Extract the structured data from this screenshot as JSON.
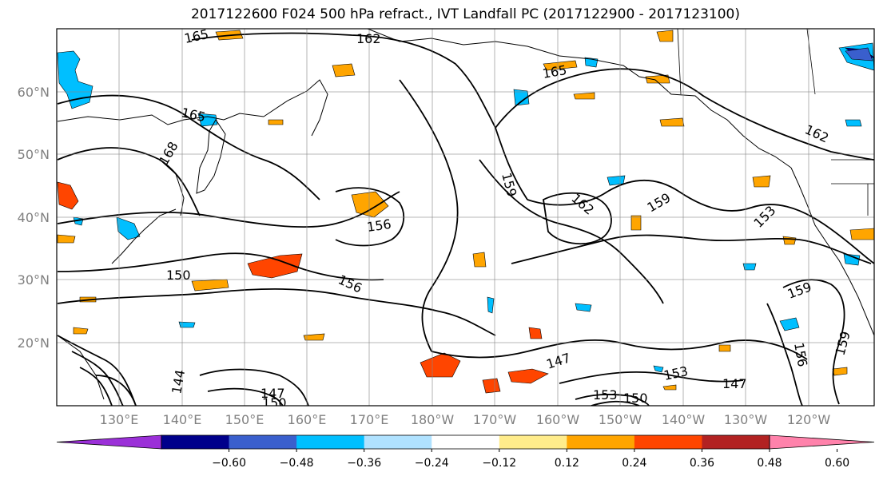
{
  "title": "2017122600 F024 500 hPa refract., IVT Landfall PC (2017122900 - 2017123100)",
  "lat_labels": [
    "60°N",
    "50°N",
    "40°N",
    "30°N",
    "20°N"
  ],
  "lon_labels": [
    "130°E",
    "140°E",
    "150°E",
    "160°E",
    "170°E",
    "180°W",
    "170°W",
    "160°W",
    "150°W",
    "140°W",
    "130°W",
    "120°W"
  ],
  "contour_labels": [
    "165",
    "162",
    "165",
    "165",
    "168",
    "159",
    "162",
    "159",
    "162",
    "153",
    "156",
    "150",
    "156",
    "159",
    "156",
    "147",
    "153",
    "147",
    "159",
    "144",
    "147",
    "150",
    "153",
    "150"
  ],
  "colorbar": {
    "tick_labels": [
      "−0.60",
      "−0.48",
      "−0.36",
      "−0.24",
      "−0.12",
      "0.12",
      "0.24",
      "0.36",
      "0.48",
      "0.60"
    ],
    "colors": [
      "#9b30d8",
      "#00008b",
      "#3a5fcd",
      "#00bfff",
      "#b0e2ff",
      "#ffffff",
      "#ffec8b",
      "#ffa500",
      "#ff4500",
      "#b22222",
      "#ff82ab"
    ]
  }
}
